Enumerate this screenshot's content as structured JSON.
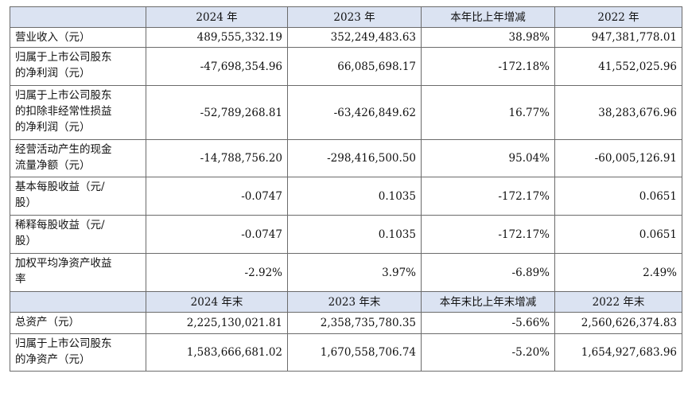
{
  "header1": {
    "col_label": "",
    "c1": "2024 年",
    "c2": "2023 年",
    "c3": "本年比上年增减",
    "c4": "2022 年"
  },
  "rows1": [
    {
      "label_lines": [
        "营业收入（元）"
      ],
      "v1": "489,555,332.19",
      "v2": "352,249,483.63",
      "v3": "38.98%",
      "v4": "947,381,778.01"
    },
    {
      "label_lines": [
        "归属于上市公司股东",
        "的净利润（元）"
      ],
      "v1": "-47,698,354.96",
      "v2": "66,085,698.17",
      "v3": "-172.18%",
      "v4": "41,552,025.96"
    },
    {
      "label_lines": [
        "归属于上市公司股东",
        "的扣除非经常性损益",
        "的净利润（元）"
      ],
      "v1": "-52,789,268.81",
      "v2": "-63,426,849.62",
      "v3": "16.77%",
      "v4": "38,283,676.96"
    },
    {
      "label_lines": [
        "经营活动产生的现金",
        "流量净额（元）"
      ],
      "v1": "-14,788,756.20",
      "v2": "-298,416,500.50",
      "v3": "95.04%",
      "v4": "-60,005,126.91"
    },
    {
      "label_lines": [
        "基本每股收益（元/",
        "股）"
      ],
      "v1": "-0.0747",
      "v2": "0.1035",
      "v3": "-172.17%",
      "v4": "0.0651"
    },
    {
      "label_lines": [
        "稀释每股收益（元/",
        "股）"
      ],
      "v1": "-0.0747",
      "v2": "0.1035",
      "v3": "-172.17%",
      "v4": "0.0651"
    },
    {
      "label_lines": [
        "加权平均净资产收益",
        "率"
      ],
      "v1": "-2.92%",
      "v2": "3.97%",
      "v3": "-6.89%",
      "v4": "2.49%"
    }
  ],
  "header2": {
    "col_label": "",
    "c1": "2024 年末",
    "c2": "2023 年末",
    "c3": "本年末比上年末增减",
    "c4": "2022 年末"
  },
  "rows2": [
    {
      "label_lines": [
        "总资产（元）"
      ],
      "v1": "2,225,130,021.81",
      "v2": "2,358,735,780.35",
      "v3": "-5.66%",
      "v4": "2,560,626,374.83"
    },
    {
      "label_lines": [
        "归属于上市公司股东",
        "的净资产（元）"
      ],
      "v1": "1,583,666,681.02",
      "v2": "1,670,558,706.74",
      "v3": "-5.20%",
      "v4": "1,654,927,683.96"
    }
  ]
}
